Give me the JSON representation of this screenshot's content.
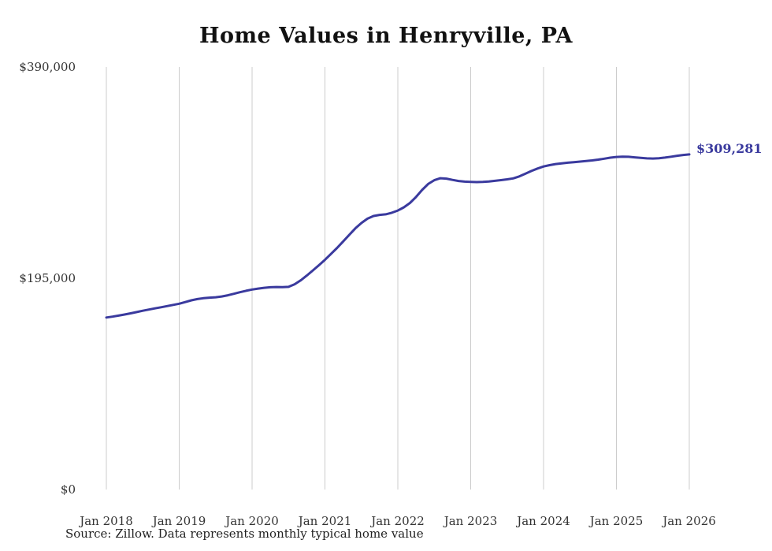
{
  "source_note": "Source: Zillow. Data represents monthly typical home value",
  "chart_data": {
    "type": "line",
    "title": "Home Values in Henryville, PA",
    "xlabel": "",
    "ylabel": "",
    "x_ticks": [
      "Jan 2018",
      "Jan 2019",
      "Jan 2020",
      "Jan 2021",
      "Jan 2022",
      "Jan 2023",
      "Jan 2024",
      "Jan 2025",
      "Jan 2026"
    ],
    "y_ticks": [
      "$390,000",
      "$195,000",
      "$0"
    ],
    "ylim": [
      0,
      390000
    ],
    "grid": "vertical-only",
    "legend": "none",
    "frequency": "monthly",
    "x_start": "Jan 2018",
    "x_end": "Jan 2026",
    "end_label": "$309,281",
    "final_value": 309281,
    "line_color": "#3a3a9e",
    "grid_color": "#cccccc",
    "series": [
      {
        "name": "Typical home value",
        "values": [
          158800,
          159600,
          160500,
          161500,
          162600,
          163800,
          165000,
          166100,
          167200,
          168200,
          169300,
          170400,
          171500,
          173000,
          174600,
          175800,
          176600,
          177100,
          177500,
          178200,
          179300,
          180700,
          182100,
          183400,
          184600,
          185500,
          186200,
          186700,
          186900,
          186800,
          187100,
          189500,
          193000,
          197500,
          202200,
          207000,
          212000,
          217500,
          223000,
          229000,
          235000,
          241000,
          246000,
          250000,
          252500,
          253500,
          254000,
          255500,
          257500,
          260500,
          264500,
          270000,
          276500,
          282000,
          285500,
          287300,
          287000,
          285800,
          284800,
          284200,
          284000,
          283800,
          283900,
          284300,
          284900,
          285600,
          286300,
          287200,
          289000,
          291500,
          294000,
          296300,
          298200,
          299400,
          300400,
          301100,
          301700,
          302200,
          302700,
          303200,
          303800,
          304500,
          305400,
          306300,
          307000,
          307300,
          307100,
          306600,
          306100,
          305700,
          305500,
          305800,
          306400,
          307200,
          308100,
          308800,
          309281
        ]
      }
    ]
  }
}
